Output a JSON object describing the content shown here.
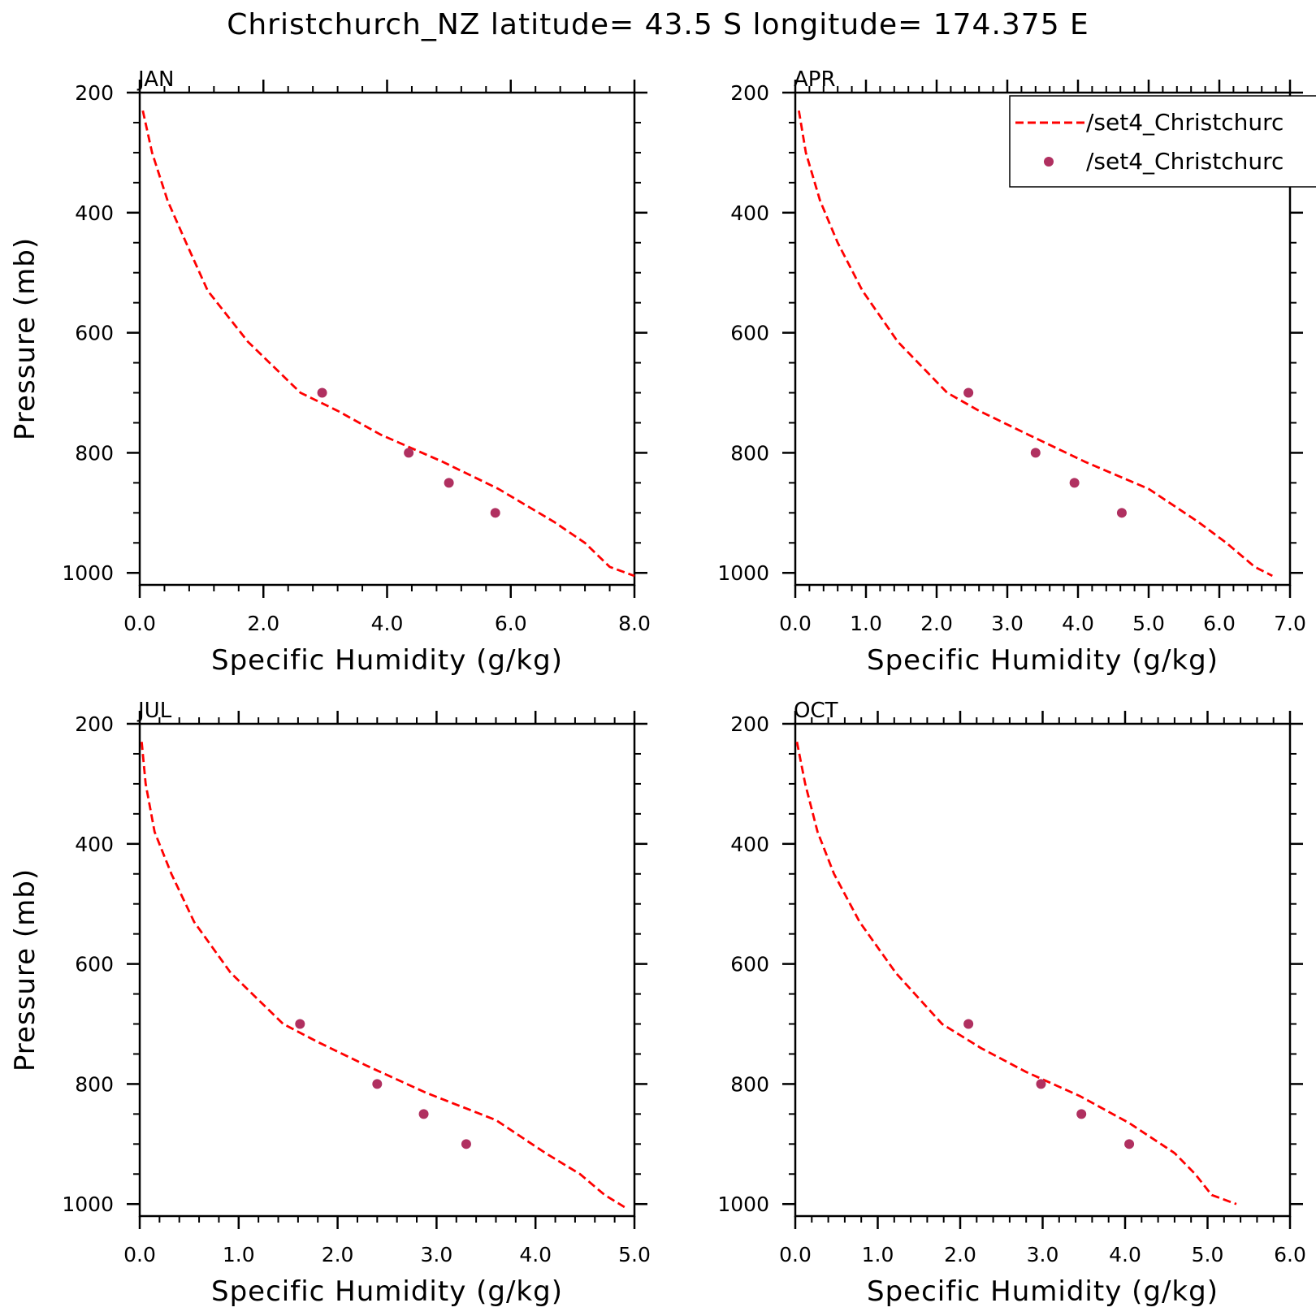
{
  "title": "Christchurch_NZ  latitude= 43.5 S longitude= 174.375 E",
  "colors": {
    "model": "#ff0000",
    "obs": "#b03060",
    "axes": "#000000"
  },
  "legend": {
    "entries": [
      {
        "label": "/set4_Christchurc",
        "style": "dashed-line",
        "color": "#ff0000"
      },
      {
        "label": "/set4_Christchurc",
        "style": "dot",
        "color": "#b03060"
      }
    ]
  },
  "chart_data": [
    {
      "type": "line",
      "panel": "JAN",
      "title": "JAN",
      "xlabel": "Specific Humidity (g/kg)",
      "ylabel": "Pressure (mb)",
      "xlim": [
        0,
        8
      ],
      "ylim": [
        200,
        1020
      ],
      "y_inverted": true,
      "xticks": [
        "0.0",
        "2.0",
        "4.0",
        "6.0",
        "8.0"
      ],
      "yticks": [
        "200",
        "400",
        "600",
        "800",
        "1000"
      ],
      "series": [
        {
          "style": "dashed-line",
          "x": [
            0.05,
            0.2,
            0.45,
            0.75,
            1.1,
            1.75,
            2.6,
            3.2,
            3.9,
            4.9,
            5.8,
            6.7,
            7.2,
            7.6,
            8.0
          ],
          "y": [
            230,
            300,
            380,
            450,
            530,
            615,
            700,
            730,
            770,
            815,
            860,
            915,
            950,
            990,
            1005
          ]
        },
        {
          "style": "dot",
          "x": [
            2.95,
            4.35,
            5.0,
            5.75
          ],
          "y": [
            700,
            800,
            850,
            900
          ]
        }
      ]
    },
    {
      "type": "line",
      "panel": "APR",
      "title": "APR",
      "xlabel": "Specific Humidity (g/kg)",
      "ylabel": "",
      "xlim": [
        0,
        7
      ],
      "ylim": [
        200,
        1020
      ],
      "y_inverted": true,
      "xticks": [
        "0.0",
        "1.0",
        "2.0",
        "3.0",
        "4.0",
        "5.0",
        "6.0",
        "7.0"
      ],
      "yticks": [
        "200",
        "400",
        "600",
        "800",
        "1000"
      ],
      "series": [
        {
          "style": "dashed-line",
          "x": [
            0.05,
            0.15,
            0.35,
            0.6,
            0.95,
            1.45,
            2.15,
            2.6,
            3.3,
            4.1,
            5.0,
            5.7,
            6.1,
            6.5,
            6.75
          ],
          "y": [
            230,
            300,
            380,
            450,
            530,
            615,
            700,
            730,
            770,
            815,
            860,
            915,
            950,
            990,
            1005
          ]
        },
        {
          "style": "dot",
          "x": [
            2.45,
            3.4,
            3.95,
            4.62
          ],
          "y": [
            700,
            800,
            850,
            900
          ]
        }
      ]
    },
    {
      "type": "line",
      "panel": "JUL",
      "title": "JUL",
      "xlabel": "Specific Humidity (g/kg)",
      "ylabel": "Pressure (mb)",
      "xlim": [
        0,
        5
      ],
      "ylim": [
        200,
        1020
      ],
      "y_inverted": true,
      "xticks": [
        "0.0",
        "1.0",
        "2.0",
        "3.0",
        "4.0",
        "5.0"
      ],
      "yticks": [
        "200",
        "400",
        "600",
        "800",
        "1000"
      ],
      "series": [
        {
          "style": "dashed-line",
          "x": [
            0.02,
            0.06,
            0.15,
            0.32,
            0.55,
            0.92,
            1.45,
            1.8,
            2.3,
            2.9,
            3.6,
            4.1,
            4.45,
            4.7,
            4.9
          ],
          "y": [
            230,
            300,
            380,
            450,
            530,
            615,
            700,
            730,
            770,
            815,
            860,
            915,
            950,
            985,
            1005
          ]
        },
        {
          "style": "dot",
          "x": [
            1.62,
            2.4,
            2.87,
            3.3
          ],
          "y": [
            700,
            800,
            850,
            900
          ]
        }
      ]
    },
    {
      "type": "line",
      "panel": "OCT",
      "title": "OCT",
      "xlabel": "Specific Humidity (g/kg)",
      "ylabel": "",
      "xlim": [
        0,
        6
      ],
      "ylim": [
        200,
        1020
      ],
      "y_inverted": true,
      "xticks": [
        "0.0",
        "1.0",
        "2.0",
        "3.0",
        "4.0",
        "5.0",
        "6.0"
      ],
      "yticks": [
        "200",
        "400",
        "600",
        "800",
        "1000"
      ],
      "series": [
        {
          "style": "dashed-line",
          "x": [
            0.02,
            0.12,
            0.27,
            0.47,
            0.78,
            1.22,
            1.78,
            2.25,
            2.8,
            3.45,
            4.05,
            4.6,
            4.85,
            5.05,
            5.35
          ],
          "y": [
            230,
            300,
            380,
            450,
            530,
            615,
            700,
            740,
            780,
            820,
            865,
            915,
            950,
            985,
            1000
          ]
        },
        {
          "style": "dot",
          "x": [
            2.1,
            2.98,
            3.47,
            4.05
          ],
          "y": [
            700,
            800,
            850,
            900
          ]
        }
      ]
    }
  ]
}
